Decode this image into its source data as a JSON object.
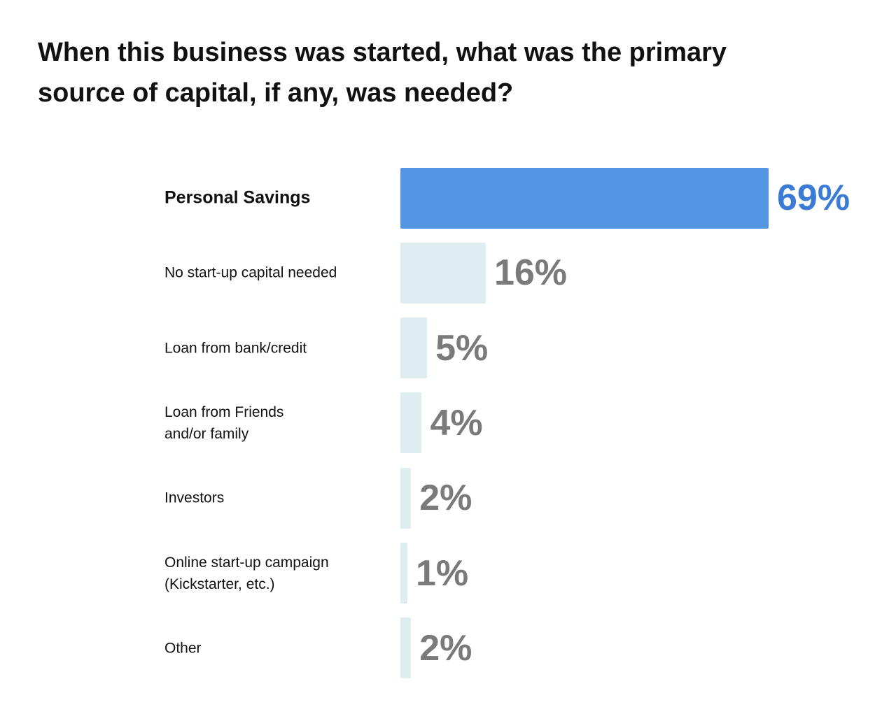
{
  "title_lines": [
    "When this business was started, what was the primary",
    "source of capital, if any, was needed?"
  ],
  "colors": {
    "highlight_bar": "#5495E1",
    "highlight_text": "#3A7BD5",
    "bar": "#DDEDF0",
    "value_text": "#7A7A7A",
    "label_text": "#111111"
  },
  "chart_data": {
    "type": "bar",
    "orientation": "horizontal",
    "title": "When this business was started, what was the primary source of capital, if any, was needed?",
    "unit": "%",
    "xlim": [
      0,
      69
    ],
    "highlight_index": 0,
    "categories": [
      [
        "Personal Savings"
      ],
      [
        "No start-up capital needed"
      ],
      [
        "Loan from bank/credit"
      ],
      [
        "Loan from Friends",
        "and/or family"
      ],
      [
        "Investors"
      ],
      [
        "Online start-up campaign",
        "(Kickstarter, etc.)"
      ],
      [
        "Other"
      ]
    ],
    "values": [
      69,
      16,
      5,
      4,
      2,
      1,
      2
    ],
    "value_labels": [
      "69%",
      "16%",
      "5%",
      "4%",
      "2%",
      "1%",
      "2%"
    ]
  }
}
